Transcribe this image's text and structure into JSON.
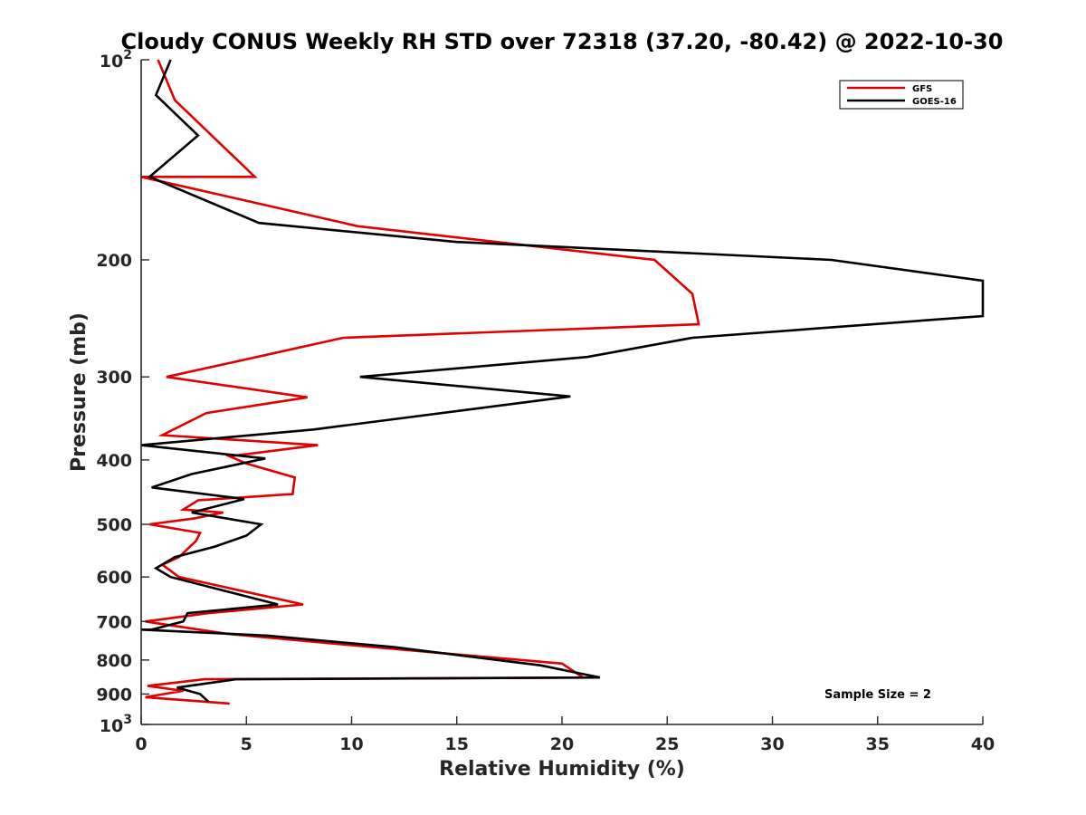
{
  "chart_data": {
    "type": "line",
    "title": "Cloudy CONUS Weekly RH STD over 72318 (37.20, -80.42) @ 2022-10-30",
    "xlabel": "Relative Humidity (%)",
    "ylabel": "Pressure (mb)",
    "xlim": [
      0,
      40
    ],
    "ylim": [
      100,
      1000
    ],
    "yscale": "log",
    "y_reversed": true,
    "grid": false,
    "legend_position": "top-right",
    "x_ticks": [
      {
        "value": 0,
        "label": "0"
      },
      {
        "value": 5,
        "label": "5"
      },
      {
        "value": 10,
        "label": "10"
      },
      {
        "value": 15,
        "label": "15"
      },
      {
        "value": 20,
        "label": "20"
      },
      {
        "value": 25,
        "label": "25"
      },
      {
        "value": 30,
        "label": "30"
      },
      {
        "value": 35,
        "label": "35"
      },
      {
        "value": 40,
        "label": "40"
      }
    ],
    "y_ticks": [
      {
        "value": 100,
        "base": "10",
        "exp": "2"
      },
      {
        "value": 200,
        "label": "200"
      },
      {
        "value": 300,
        "label": "300"
      },
      {
        "value": 400,
        "label": "400"
      },
      {
        "value": 500,
        "label": "500"
      },
      {
        "value": 600,
        "label": "600"
      },
      {
        "value": 700,
        "label": "700"
      },
      {
        "value": 800,
        "label": "800"
      },
      {
        "value": 900,
        "label": "900"
      },
      {
        "value": 1000,
        "base": "10",
        "exp": "3"
      }
    ],
    "series": [
      {
        "name": "GFS",
        "color": "#e00000",
        "x": [
          0.8,
          1.6,
          5.4,
          0.0,
          10.3,
          24.4,
          26.2,
          26.5,
          9.6,
          5.5,
          1.2,
          7.9,
          3.1,
          1.0,
          8.4,
          4.2,
          5.0,
          7.3,
          7.2,
          2.7,
          2.0,
          3.9,
          2.5,
          0.4,
          2.8,
          2.6,
          1.8,
          1.0,
          1.8,
          7.7,
          3.2,
          0.2,
          4.0,
          10.0,
          20.0,
          21.0,
          3.0,
          0.3,
          2.0,
          0.2,
          4.2
        ],
        "y": [
          100,
          115,
          150,
          150,
          178,
          200,
          225,
          250,
          262,
          280,
          300,
          322,
          340,
          367,
          380,
          395,
          405,
          425,
          450,
          460,
          475,
          480,
          490,
          500,
          515,
          530,
          560,
          575,
          600,
          660,
          680,
          700,
          730,
          760,
          810,
          850,
          855,
          875,
          890,
          910,
          930
        ]
      },
      {
        "name": "GOES-16",
        "color": "#000000",
        "x": [
          1.4,
          0.7,
          2.7,
          0.4,
          5.6,
          15.0,
          32.8,
          40.0,
          40.0,
          26.2,
          21.2,
          10.4,
          20.4,
          8.2,
          0.0,
          5.9,
          2.4,
          0.5,
          4.9,
          2.4,
          5.7,
          5.0,
          3.5,
          1.6,
          0.7,
          1.4,
          6.5,
          2.2,
          2.0,
          0.5,
          0.0,
          6.0,
          12.0,
          19.0,
          21.8,
          4.5,
          1.7,
          2.8,
          3.2
        ],
        "y": [
          100,
          113,
          130,
          150,
          176,
          188,
          200,
          215,
          243,
          262,
          280,
          300,
          321,
          360,
          380,
          398,
          420,
          440,
          458,
          480,
          500,
          520,
          540,
          560,
          582,
          600,
          660,
          680,
          700,
          720,
          720,
          735,
          765,
          815,
          850,
          855,
          880,
          900,
          925
        ]
      }
    ],
    "annotation": "Sample Size = 2"
  }
}
